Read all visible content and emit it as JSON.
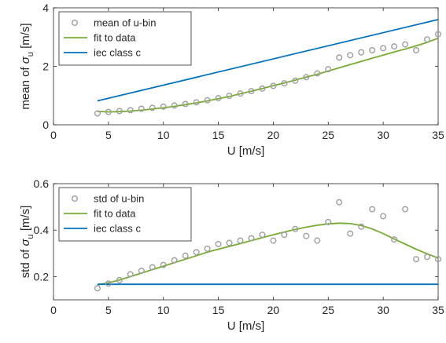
{
  "chart_data": [
    {
      "type": "scatter",
      "xlabel": "U [m/s]",
      "ylabel_prefix": "mean of",
      "ylabel_sigma": "σ",
      "ylabel_sub": "u",
      "ylabel_unit": "[m/s]",
      "xlim": [
        0,
        35
      ],
      "ylim": [
        0,
        4
      ],
      "xticks": [
        0,
        5,
        10,
        15,
        20,
        25,
        30,
        35
      ],
      "yticks": [
        0,
        2,
        4
      ],
      "legend_position": "top-left",
      "series": [
        {
          "name": "mean of u-bin",
          "kind": "markers",
          "color": "#9e9e9e",
          "x": [
            4,
            5,
            6,
            7,
            8,
            9,
            10,
            11,
            12,
            13,
            14,
            15,
            16,
            17,
            18,
            19,
            20,
            21,
            22,
            23,
            24,
            25,
            26,
            27,
            28,
            29,
            30,
            31,
            32,
            33,
            34,
            35
          ],
          "y": [
            0.39,
            0.44,
            0.47,
            0.5,
            0.55,
            0.58,
            0.62,
            0.66,
            0.71,
            0.77,
            0.84,
            0.91,
            0.99,
            1.07,
            1.15,
            1.24,
            1.33,
            1.42,
            1.51,
            1.63,
            1.76,
            1.9,
            2.3,
            2.38,
            2.48,
            2.55,
            2.62,
            2.68,
            2.75,
            2.55,
            2.92,
            3.1
          ]
        },
        {
          "name": "fit to data",
          "kind": "line",
          "color": "#77ac30",
          "x": [
            4,
            5,
            6,
            7,
            8,
            9,
            10,
            11,
            12,
            13,
            14,
            15,
            16,
            17,
            18,
            19,
            20,
            21,
            22,
            23,
            24,
            25,
            26,
            27,
            28,
            29,
            30,
            31,
            32,
            33,
            34,
            35
          ],
          "y": [
            0.46,
            0.44,
            0.45,
            0.47,
            0.5,
            0.54,
            0.58,
            0.63,
            0.69,
            0.75,
            0.82,
            0.89,
            0.97,
            1.06,
            1.15,
            1.24,
            1.34,
            1.43,
            1.53,
            1.63,
            1.73,
            1.84,
            1.95,
            2.06,
            2.17,
            2.28,
            2.38,
            2.49,
            2.59,
            2.7,
            2.82,
            2.96
          ]
        },
        {
          "name": "iec class c",
          "kind": "line",
          "color": "#0072bd",
          "x": [
            4,
            35
          ],
          "y": [
            0.82,
            3.6
          ]
        }
      ]
    },
    {
      "type": "scatter",
      "xlabel": "U [m/s]",
      "ylabel_prefix": "std of",
      "ylabel_sigma": "σ",
      "ylabel_sub": "u",
      "ylabel_unit": "[m/s]",
      "xlim": [
        0,
        35
      ],
      "ylim": [
        0.1,
        0.6
      ],
      "xticks": [
        0,
        5,
        10,
        15,
        20,
        25,
        30,
        35
      ],
      "yticks": [
        0.2,
        0.4,
        0.6
      ],
      "legend_position": "top-left",
      "series": [
        {
          "name": "std of u-bin",
          "kind": "markers",
          "color": "#9e9e9e",
          "x": [
            4,
            5,
            6,
            7,
            8,
            9,
            10,
            11,
            12,
            13,
            14,
            15,
            16,
            17,
            18,
            19,
            20,
            21,
            22,
            23,
            24,
            25,
            26,
            27,
            28,
            29,
            30,
            31,
            32,
            33,
            34,
            35
          ],
          "y": [
            0.15,
            0.17,
            0.185,
            0.21,
            0.225,
            0.24,
            0.25,
            0.27,
            0.29,
            0.305,
            0.32,
            0.34,
            0.345,
            0.355,
            0.365,
            0.38,
            0.355,
            0.38,
            0.405,
            0.375,
            0.355,
            0.435,
            0.52,
            0.385,
            0.415,
            0.49,
            0.46,
            0.36,
            0.49,
            0.275,
            0.285,
            0.275
          ]
        },
        {
          "name": "fit to data",
          "kind": "line",
          "color": "#77ac30",
          "x": [
            4,
            5,
            6,
            7,
            8,
            9,
            10,
            11,
            12,
            13,
            14,
            15,
            16,
            17,
            18,
            19,
            20,
            21,
            22,
            23,
            24,
            25,
            26,
            27,
            28,
            29,
            30,
            31,
            32,
            33,
            34,
            35
          ],
          "y": [
            0.165,
            0.173,
            0.185,
            0.2,
            0.215,
            0.23,
            0.245,
            0.26,
            0.275,
            0.29,
            0.305,
            0.318,
            0.33,
            0.342,
            0.355,
            0.368,
            0.38,
            0.392,
            0.403,
            0.413,
            0.421,
            0.427,
            0.43,
            0.428,
            0.42,
            0.405,
            0.385,
            0.362,
            0.34,
            0.318,
            0.298,
            0.28
          ]
        },
        {
          "name": "iec class c",
          "kind": "line",
          "color": "#0072bd",
          "x": [
            4,
            35
          ],
          "y": [
            0.167,
            0.167
          ]
        }
      ]
    }
  ]
}
